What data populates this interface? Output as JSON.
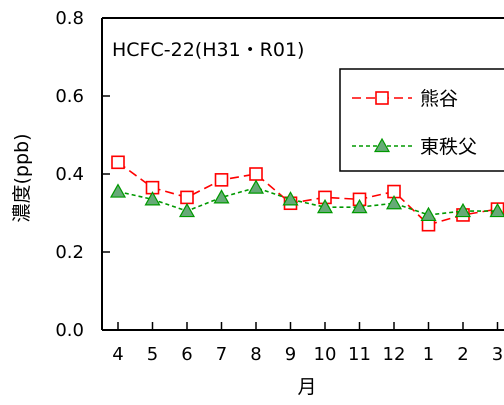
{
  "chart_data": {
    "type": "line",
    "title": "HCFC-22(H31・R01)",
    "xlabel": "月",
    "ylabel": "濃度(ppb)",
    "categories": [
      "4",
      "5",
      "6",
      "7",
      "8",
      "9",
      "10",
      "11",
      "12",
      "1",
      "2",
      "3"
    ],
    "ylim": [
      0,
      0.8
    ],
    "yticks": [
      "0.0",
      "0.2",
      "0.4",
      "0.6",
      "0.8"
    ],
    "grid": false,
    "legend_position": "top-right",
    "series": [
      {
        "name": "熊谷",
        "color": "#ff0000",
        "marker": "open-square",
        "line": "dashed",
        "values": [
          0.43,
          0.365,
          0.34,
          0.385,
          0.4,
          0.325,
          0.34,
          0.335,
          0.355,
          0.27,
          0.295,
          0.31
        ]
      },
      {
        "name": "東秩父",
        "color": "#009900",
        "marker_fill": "#66aa77",
        "marker": "filled-triangle",
        "line": "dotted",
        "values": [
          0.355,
          0.335,
          0.305,
          0.34,
          0.365,
          0.335,
          0.315,
          0.315,
          0.325,
          0.295,
          0.305,
          0.305
        ]
      }
    ]
  }
}
